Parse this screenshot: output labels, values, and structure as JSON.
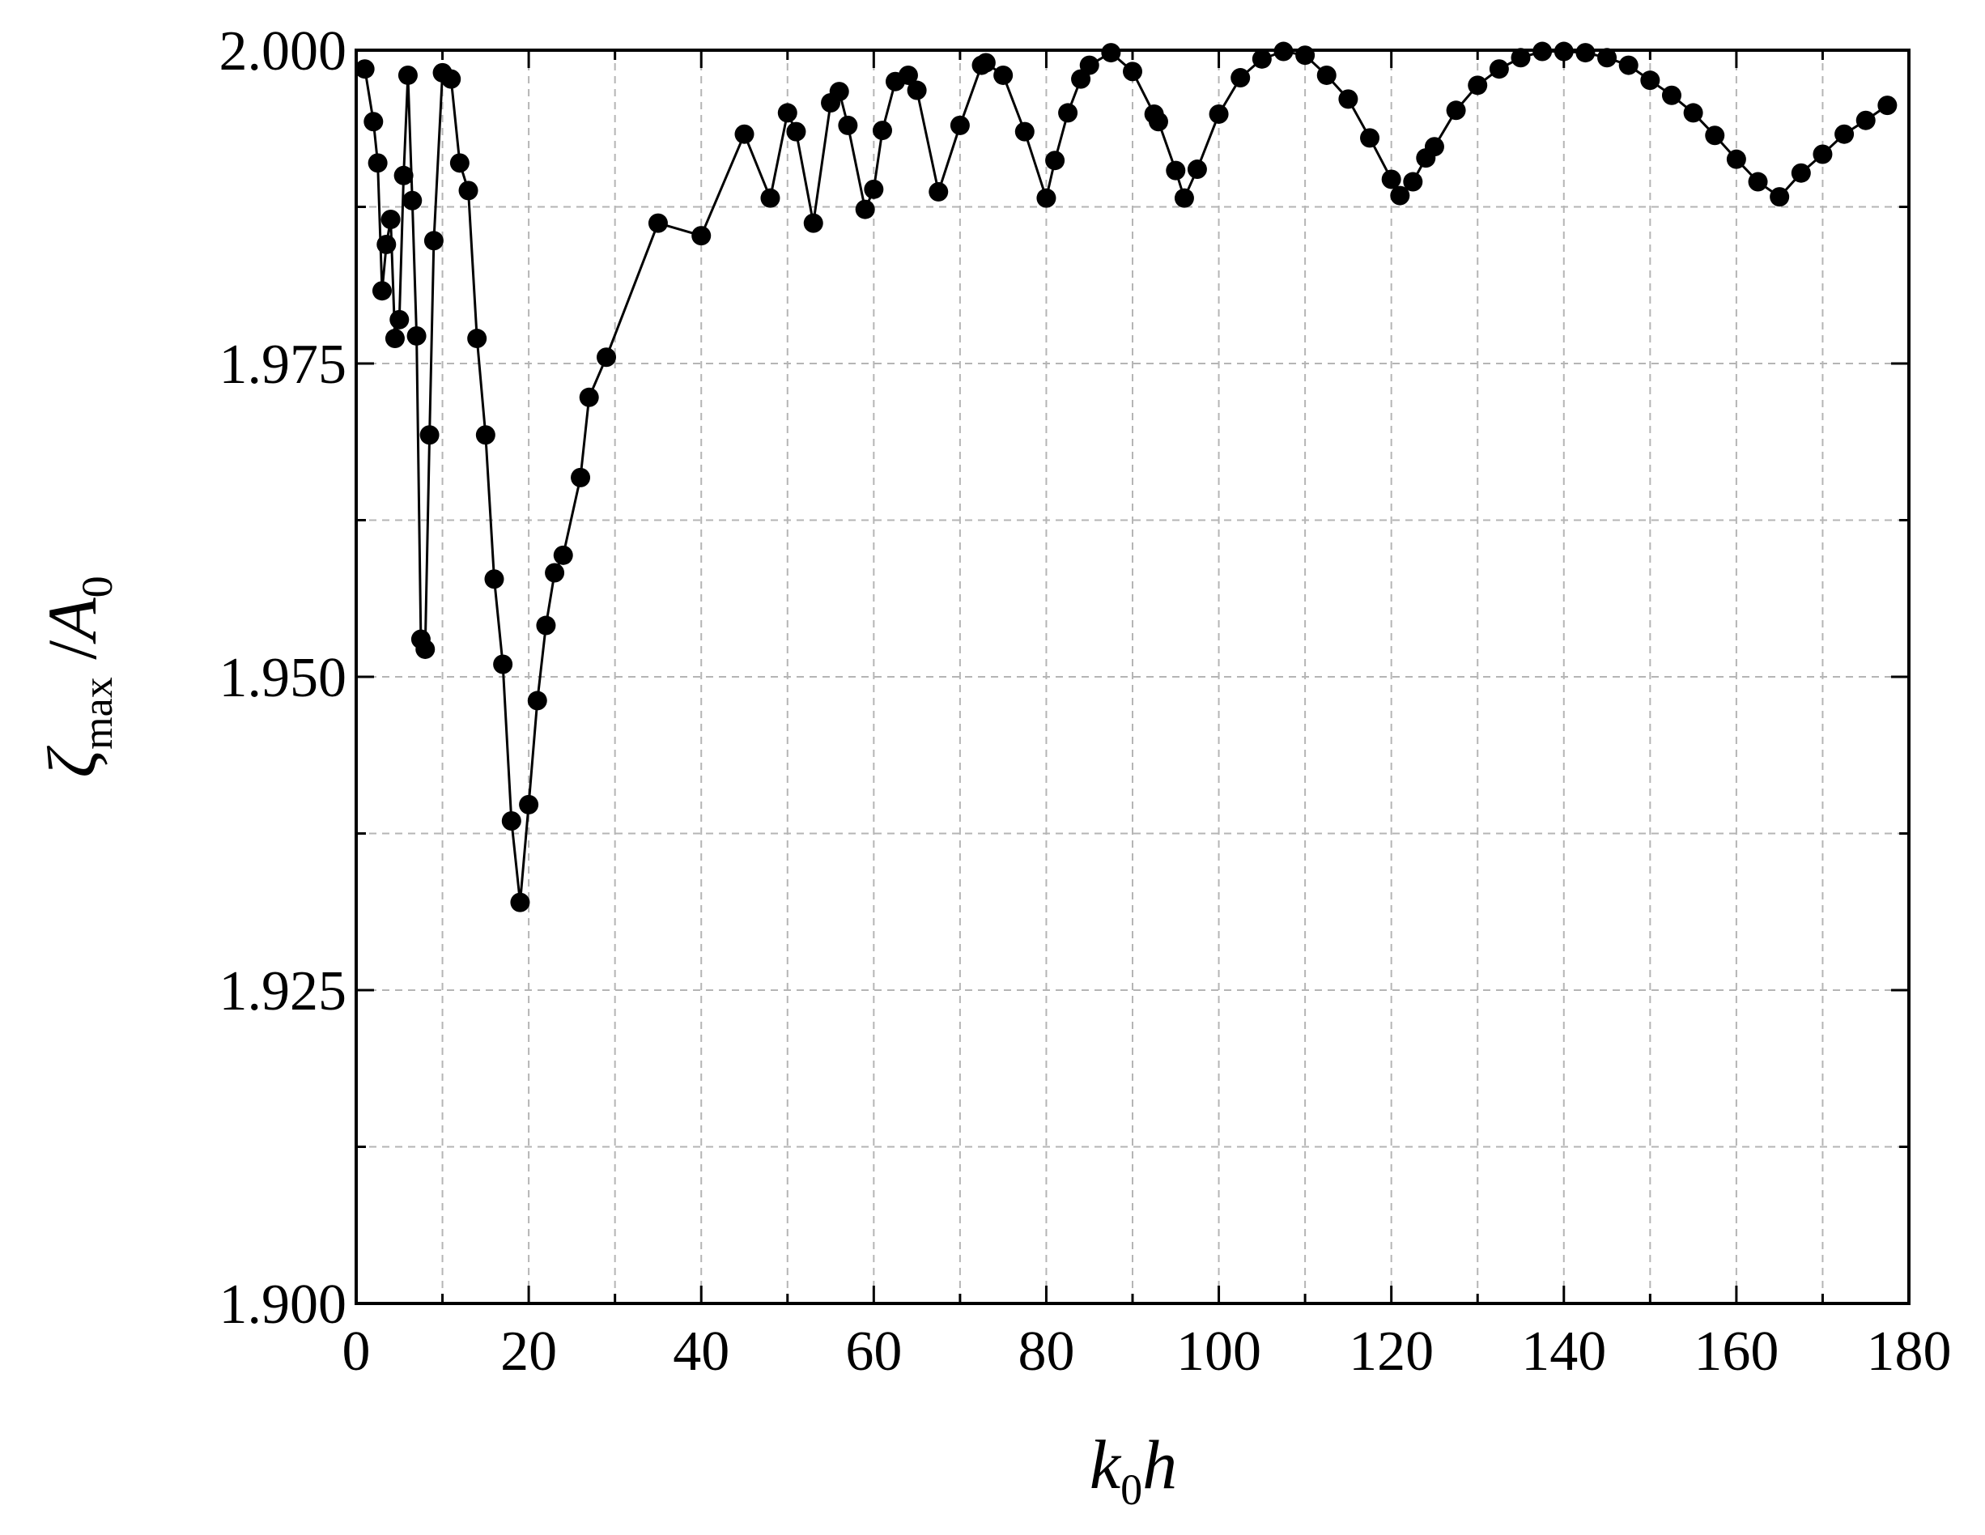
{
  "chart_data": {
    "type": "line",
    "title": "",
    "xlabel": {
      "main": "k",
      "sub": "0",
      "tail": "h"
    },
    "ylabel": {
      "zeta": "ζ",
      "sub": "max",
      "slash": " /",
      "A": "A",
      "A_sub": "0"
    },
    "xlim": [
      0,
      180
    ],
    "ylim": [
      1.9,
      2.0
    ],
    "x_ticks": [
      "0",
      "20",
      "40",
      "60",
      "80",
      "100",
      "120",
      "140",
      "160",
      "180"
    ],
    "y_ticks": [
      "1.900",
      "1.925",
      "1.950",
      "1.975",
      "2.000"
    ],
    "grid": true,
    "legend": "none",
    "series": [
      {
        "marker": "filled-circle",
        "color": "#000000",
        "x": [
          1,
          2,
          2.5,
          3,
          3.5,
          4,
          4.5,
          5,
          5.5,
          6,
          6.5,
          7,
          7.5,
          8,
          8.5,
          9,
          10,
          11,
          12,
          13,
          14,
          15,
          16,
          17,
          18,
          19,
          20,
          21,
          22,
          23,
          24,
          26,
          27,
          29,
          35,
          40,
          45,
          48,
          50,
          51,
          53,
          55,
          56,
          57,
          59,
          60,
          61,
          62.5,
          64,
          65,
          67.5,
          70,
          72.5,
          73,
          75,
          77.5,
          80,
          81,
          82.5,
          84,
          85,
          87.5,
          90,
          92.5,
          93,
          95,
          96,
          97.5,
          100,
          102.5,
          105,
          107.5,
          110,
          112.5,
          115,
          117.5,
          120,
          121,
          122.5,
          124,
          125,
          127.5,
          130,
          132.5,
          135,
          137.5,
          140,
          142.5,
          145,
          147.5,
          150,
          152.5,
          155,
          157.5,
          160,
          162.5,
          165,
          167.5,
          170,
          172.5,
          175,
          177.5
        ],
        "y": [
          1.9985,
          1.9943,
          1.991,
          1.9808,
          1.9845,
          1.9865,
          1.977,
          1.9785,
          1.99,
          1.998,
          1.988,
          1.9772,
          1.953,
          1.9522,
          1.9693,
          1.9848,
          1.9982,
          1.9977,
          1.991,
          1.9888,
          1.977,
          1.9693,
          1.9578,
          1.951,
          1.9385,
          1.932,
          1.9398,
          1.9481,
          1.9541,
          1.9583,
          1.9597,
          1.9659,
          1.9723,
          1.9755,
          1.9862,
          1.9852,
          1.9933,
          1.9882,
          1.995,
          1.9935,
          1.9862,
          1.9958,
          1.9967,
          1.994,
          1.9873,
          1.9889,
          1.9936,
          1.9975,
          1.998,
          1.9968,
          1.9887,
          1.994,
          1.9988,
          1.999,
          1.998,
          1.9935,
          1.9882,
          1.9912,
          1.995,
          1.9977,
          1.9988,
          1.9998,
          1.9983,
          1.9949,
          1.9943,
          1.9904,
          1.9882,
          1.9905,
          1.9949,
          1.9978,
          1.9993,
          1.9999,
          1.9996,
          1.998,
          1.9961,
          1.993,
          1.9897,
          1.9884,
          1.9895,
          1.9914,
          1.9923,
          1.9952,
          1.9972,
          1.9985,
          1.9994,
          1.9999,
          1.9999,
          1.9998,
          1.9994,
          1.9988,
          1.9976,
          1.9964,
          1.995,
          1.9932,
          1.9913,
          1.9895,
          1.9883,
          1.9902,
          1.9917,
          1.9933,
          1.9944,
          1.9956
        ]
      }
    ]
  }
}
